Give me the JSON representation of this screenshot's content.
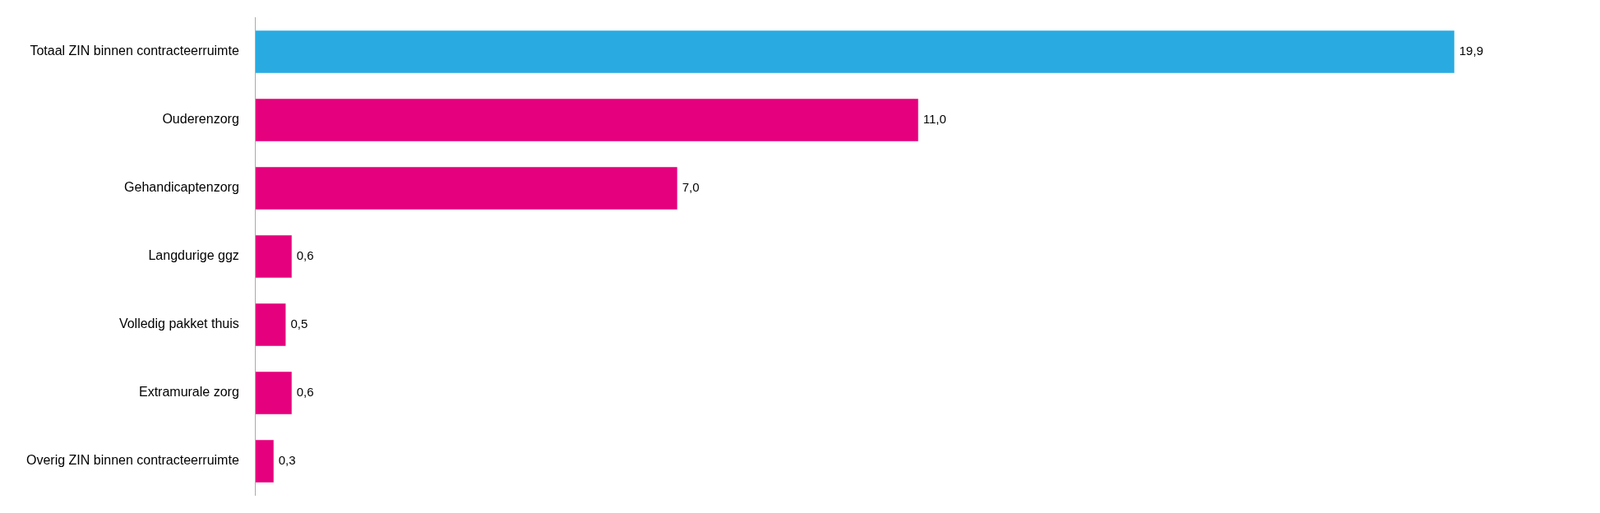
{
  "chart_data": {
    "type": "bar",
    "orientation": "horizontal",
    "categories": [
      "Overig ZIN binnen contracteerruimte",
      "Extramurale zorg",
      "Volledig pakket thuis",
      "Langdurige ggz",
      "Gehandicaptenzorg",
      "Ouderenzorg",
      "Totaal ZIN binnen contracteerruimte"
    ],
    "values": [
      0.3,
      0.6,
      0.5,
      0.6,
      7.0,
      11.0,
      19.9
    ],
    "value_labels": [
      "0,3",
      "0,6",
      "0,5",
      "0,6",
      "7,0",
      "11,0",
      "19,9"
    ],
    "colors": [
      "#E5007D",
      "#E5007D",
      "#E5007D",
      "#E5007D",
      "#E5007D",
      "#E5007D",
      "#29ABE2"
    ],
    "xlim": [
      0,
      21.5
    ],
    "data_labels": true,
    "tick_labels": "y",
    "grid": false
  }
}
